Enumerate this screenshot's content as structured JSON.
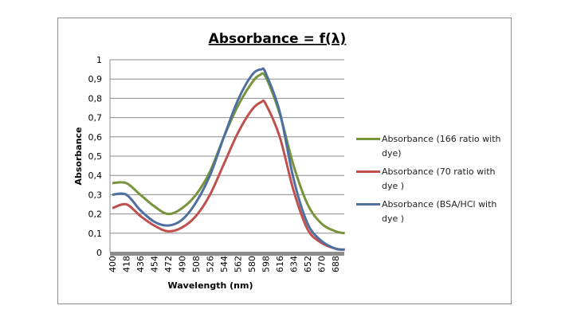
{
  "chart_data": {
    "type": "line",
    "title": "Absorbance = f(λ)",
    "xlabel": "Wavelength (nm)",
    "ylabel": "Absorbance",
    "xlim": [
      400,
      700
    ],
    "ylim": [
      0,
      1
    ],
    "x_ticks": [
      "400",
      "418",
      "436",
      "454",
      "472",
      "490",
      "508",
      "526",
      "544",
      "562",
      "580",
      "598",
      "616",
      "634",
      "652",
      "670",
      "688"
    ],
    "y_ticks": [
      "0",
      "0,1",
      "0,2",
      "0,3",
      "0,4",
      "0,5",
      "0,6",
      "0,7",
      "0,8",
      "0,9",
      "1"
    ],
    "grid": true,
    "legend_position": "right",
    "series": [
      {
        "name": "Absorbance (166 ratio with dye)",
        "color": "#77933c",
        "x": [
          400,
          418,
          436,
          454,
          472,
          490,
          508,
          526,
          544,
          562,
          580,
          590,
          598,
          616,
          634,
          652,
          670,
          688,
          700
        ],
        "y": [
          0.36,
          0.36,
          0.3,
          0.24,
          0.2,
          0.23,
          0.3,
          0.42,
          0.6,
          0.76,
          0.88,
          0.92,
          0.91,
          0.72,
          0.45,
          0.25,
          0.15,
          0.11,
          0.1
        ]
      },
      {
        "name": "Absorbance (70 ratio with dye )",
        "color": "#c0504d",
        "x": [
          400,
          418,
          436,
          454,
          472,
          490,
          508,
          526,
          544,
          562,
          580,
          592,
          598,
          616,
          634,
          652,
          670,
          688,
          700
        ],
        "y": [
          0.23,
          0.25,
          0.19,
          0.14,
          0.11,
          0.13,
          0.19,
          0.3,
          0.46,
          0.62,
          0.74,
          0.78,
          0.77,
          0.6,
          0.32,
          0.12,
          0.05,
          0.02,
          0.015
        ]
      },
      {
        "name": "Absorbance (BSA/HCl with dye )",
        "color": "#4f6fa0",
        "x": [
          400,
          418,
          436,
          454,
          472,
          490,
          508,
          526,
          544,
          562,
          580,
          592,
          598,
          616,
          634,
          652,
          670,
          688,
          700
        ],
        "y": [
          0.3,
          0.3,
          0.22,
          0.16,
          0.14,
          0.17,
          0.26,
          0.4,
          0.6,
          0.79,
          0.92,
          0.95,
          0.93,
          0.73,
          0.38,
          0.15,
          0.06,
          0.02,
          0.015
        ]
      }
    ]
  }
}
